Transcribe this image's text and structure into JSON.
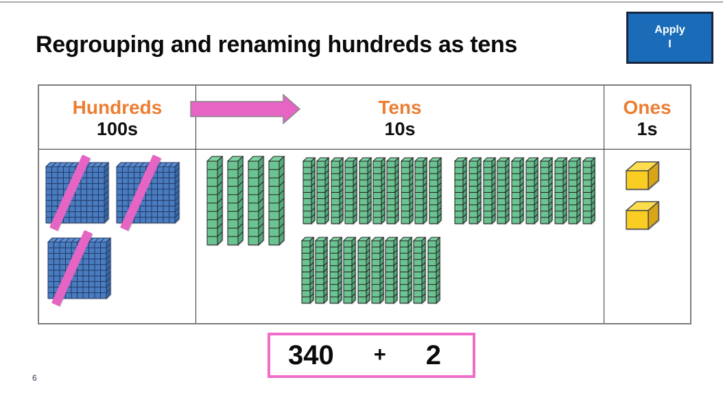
{
  "slide": {
    "title": "Regrouping and renaming hundreds as tens",
    "page_number": "6"
  },
  "apply_button": {
    "line1": "Apply",
    "line2": "I"
  },
  "icons": {
    "regroup_arrow": "right-arrow",
    "cross_out": "diagonal-slash"
  },
  "place_value_table": {
    "columns": [
      {
        "name": "Hundreds",
        "sub": "100s"
      },
      {
        "name": "Tens",
        "sub": "10s"
      },
      {
        "name": "Ones",
        "sub": "1s"
      }
    ],
    "hundreds": {
      "block_count": 3,
      "crossed_out": true
    },
    "tens": {
      "rod_groups": [
        {
          "count": 4
        },
        {
          "count": 10
        },
        {
          "count": 10
        },
        {
          "count": 10
        }
      ],
      "total_rods": 34
    },
    "ones": {
      "cube_count": 2
    }
  },
  "equation": {
    "tens_value": "340",
    "operator": "+",
    "ones_value": "2"
  },
  "colors": {
    "accent_orange": "#ED7D31",
    "pink": "#E564C4",
    "equation_border_pink": "#EF6CC8",
    "button_blue": "#1B6CB8",
    "block_blue": "#4A7CC0",
    "block_blue_light": "#5C8CD0",
    "block_blue_dark": "#3A67A6",
    "block_line": "#1F3864",
    "rod_green": "#6CC392",
    "rod_green_light": "#7FD0A2",
    "rod_green_dark": "#55A97C",
    "rod_line": "#1C1C1C",
    "cube_yellow": "#FACD23",
    "cube_yellow_light": "#FDDC4E",
    "cube_yellow_dark": "#D9A514",
    "cube_line": "#4D4D4D"
  }
}
